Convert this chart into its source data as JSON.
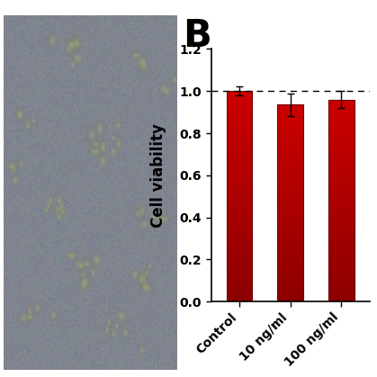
{
  "bar_categories": [
    "Control",
    "10 ng/ml",
    "100 ng/ml"
  ],
  "bar_values": [
    1.0,
    0.935,
    0.96
  ],
  "bar_errors": [
    0.022,
    0.055,
    0.04
  ],
  "bar_color_dark": "#8b0000",
  "bar_color_bright": "#ff2200",
  "ylabel": "Cell viability",
  "ylim": [
    0.0,
    1.2
  ],
  "yticks": [
    0.0,
    0.2,
    0.4,
    0.6,
    0.8,
    1.0,
    1.2
  ],
  "dashed_line_y": 1.0,
  "panel_label": "B",
  "panel_label_fontsize": 30,
  "tick_fontsize": 10,
  "ylabel_fontsize": 12,
  "figure_bg": "#ffffff",
  "bar_width": 0.5,
  "x_positions": [
    0,
    1,
    2
  ],
  "xlim": [
    -0.55,
    2.55
  ]
}
